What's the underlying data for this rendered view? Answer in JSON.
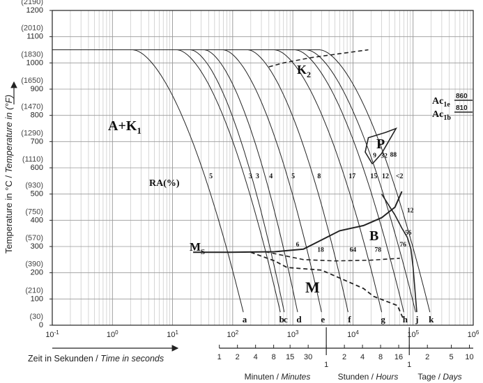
{
  "chart_data": {
    "type": "line",
    "title": "",
    "xlabel": "Zeit in Sekunden / Time in seconds",
    "xlabel_parts": {
      "de": "Zeit in Sekunden / ",
      "en": "Time in seconds"
    },
    "ylabel": "Temperature in °C / Temperature in (°F)",
    "ylabel_parts": {
      "de": "Temperature in °C / ",
      "en": "Temperature in (°F)"
    },
    "x_scale": "log",
    "xlim": [
      0.1,
      1000000
    ],
    "ylim": [
      0,
      1200
    ],
    "grid": true,
    "x_ticks": [
      "10-1",
      "100",
      "101",
      "102",
      "103",
      "104",
      "105",
      "106"
    ],
    "x_ticks_structured": [
      {
        "base": "10",
        "exp": "-1"
      },
      {
        "base": "10",
        "exp": "0"
      },
      {
        "base": "10",
        "exp": "1"
      },
      {
        "base": "10",
        "exp": "2"
      },
      {
        "base": "10",
        "exp": "3"
      },
      {
        "base": "10",
        "exp": "4"
      },
      {
        "base": "10",
        "exp": "5"
      },
      {
        "base": "10",
        "exp": "6"
      }
    ],
    "y_ticks": [
      {
        "c": "0",
        "f": "(30)"
      },
      {
        "c": "100",
        "f": "(210)"
      },
      {
        "c": "200",
        "f": "(390)"
      },
      {
        "c": "300",
        "f": "(570)"
      },
      {
        "c": "400",
        "f": "(750)"
      },
      {
        "c": "500",
        "f": "(930)"
      },
      {
        "c": "600",
        "f": "(1110)"
      },
      {
        "c": "700",
        "f": "(1290)"
      },
      {
        "c": "800",
        "f": "(1470)"
      },
      {
        "c": "900",
        "f": "(1650)"
      },
      {
        "c": "1000",
        "f": "(1830)"
      },
      {
        "c": "1100",
        "f": "(2010)"
      },
      {
        "c": "1200",
        "f": "(2190)"
      }
    ],
    "secondary_axes": {
      "minutes": {
        "label_de": "Minuten / ",
        "label_en": "Minutes",
        "ticks": [
          "1",
          "2",
          "4",
          "8",
          "15",
          "30"
        ],
        "seconds": [
          60,
          120,
          240,
          480,
          900,
          1800
        ]
      },
      "hours": {
        "label_de": "Stunden / ",
        "label_en": "Hours",
        "ticks": [
          "1",
          "2",
          "4",
          "8",
          "16"
        ],
        "seconds": [
          3600,
          7200,
          14400,
          28800,
          57600
        ]
      },
      "days": {
        "label_de": "Tage / ",
        "label_en": "Days",
        "ticks": [
          "1",
          "2",
          "5",
          "10"
        ],
        "seconds": [
          86400,
          172800,
          432000,
          864000
        ]
      }
    },
    "cooling_curves": [
      {
        "label": "a",
        "ra": "5",
        "t_end": 150,
        "t_start": 2.2
      },
      {
        "label": "b",
        "ra": "3",
        "t_end": 620,
        "t_start": 12
      },
      {
        "label": "c",
        "ra": "3",
        "t_end": 720,
        "t_start": 20
      },
      {
        "label": "d",
        "ra": "4",
        "t_end": 1200,
        "t_start": 34
      },
      {
        "label": "e",
        "ra": "5",
        "t_end": 3000,
        "t_start": 70
      },
      {
        "label": "f",
        "ra": "8",
        "t_end": 8300,
        "t_start": 180
      },
      {
        "label": "g",
        "ra": "17",
        "t_end": 30000,
        "t_start": 500
      },
      {
        "label": "h",
        "ra": "15",
        "t_end": 70000,
        "t_start": 1100
      },
      {
        "label": "j",
        "ra": "12",
        "t_end": 110000,
        "t_start": 1700
      },
      {
        "label": "k",
        "ra": "<2",
        "t_end": 190000,
        "t_start": 2800
      }
    ],
    "initial_temperature": 1050,
    "boundaries": {
      "Ms": [
        [
          22,
          278
        ],
        [
          90,
          278
        ],
        [
          500,
          280
        ],
        [
          1500,
          290
        ],
        [
          3000,
          325
        ],
        [
          6000,
          360
        ],
        [
          15000,
          380
        ],
        [
          30000,
          410
        ],
        [
          50000,
          450
        ],
        [
          65000,
          510
        ]
      ],
      "bainite_right": [
        [
          30000,
          500
        ],
        [
          50000,
          420
        ],
        [
          65000,
          370
        ],
        [
          80000,
          335
        ],
        [
          92000,
          290
        ],
        [
          100000,
          220
        ],
        [
          115000,
          50
        ]
      ],
      "Mf_dashed": [
        [
          200,
          278
        ],
        [
          500,
          245
        ],
        [
          800,
          220
        ],
        [
          3000,
          210
        ],
        [
          6000,
          180
        ],
        [
          15000,
          140
        ],
        [
          22000,
          110
        ],
        [
          55000,
          75
        ],
        [
          70000,
          20
        ]
      ],
      "bainite_finish_dashed": [
        [
          350,
          280
        ],
        [
          1500,
          250
        ],
        [
          5000,
          245
        ],
        [
          20000,
          248
        ],
        [
          60000,
          255
        ]
      ],
      "K2_dashed": [
        [
          400,
          985
        ],
        [
          700,
          1000
        ],
        [
          2000,
          1020
        ],
        [
          6000,
          1035
        ],
        [
          18000,
          1050
        ]
      ],
      "P_loop": [
        [
          21000,
          615
        ],
        [
          16000,
          660
        ],
        [
          18000,
          715
        ],
        [
          35000,
          735
        ],
        [
          52000,
          750
        ],
        [
          30000,
          655
        ],
        [
          21000,
          615
        ]
      ]
    },
    "phase_labels": [
      {
        "text": "A+K",
        "sub": "1"
      },
      {
        "text": "K",
        "sub": "2"
      },
      {
        "text": "P",
        "sub": ""
      },
      {
        "text": "B",
        "sub": ""
      },
      {
        "text": "M",
        "sub": ""
      },
      {
        "text": "M",
        "sub": "S"
      }
    ],
    "ra_label": "RA(%)",
    "annotations": [
      {
        "text": "9",
        "x": 23000,
        "y": 640
      },
      {
        "text": "32",
        "x": 33000,
        "y": 638
      },
      {
        "text": "88",
        "x": 47000,
        "y": 643
      },
      {
        "text": "6",
        "x": 1200,
        "y": 300
      },
      {
        "text": "18",
        "x": 2900,
        "y": 280
      },
      {
        "text": "64",
        "x": 10000,
        "y": 280
      },
      {
        "text": "78",
        "x": 26000,
        "y": 280
      },
      {
        "text": "76",
        "x": 68000,
        "y": 300
      },
      {
        "text": "56",
        "x": 83000,
        "y": 345
      },
      {
        "text": "12",
        "x": 90000,
        "y": 430
      }
    ],
    "ac_temps": {
      "Ac1e": "860",
      "Ac1b": "810",
      "label_base": "Ac",
      "sub_e": "1e",
      "sub_b": "1b"
    }
  }
}
